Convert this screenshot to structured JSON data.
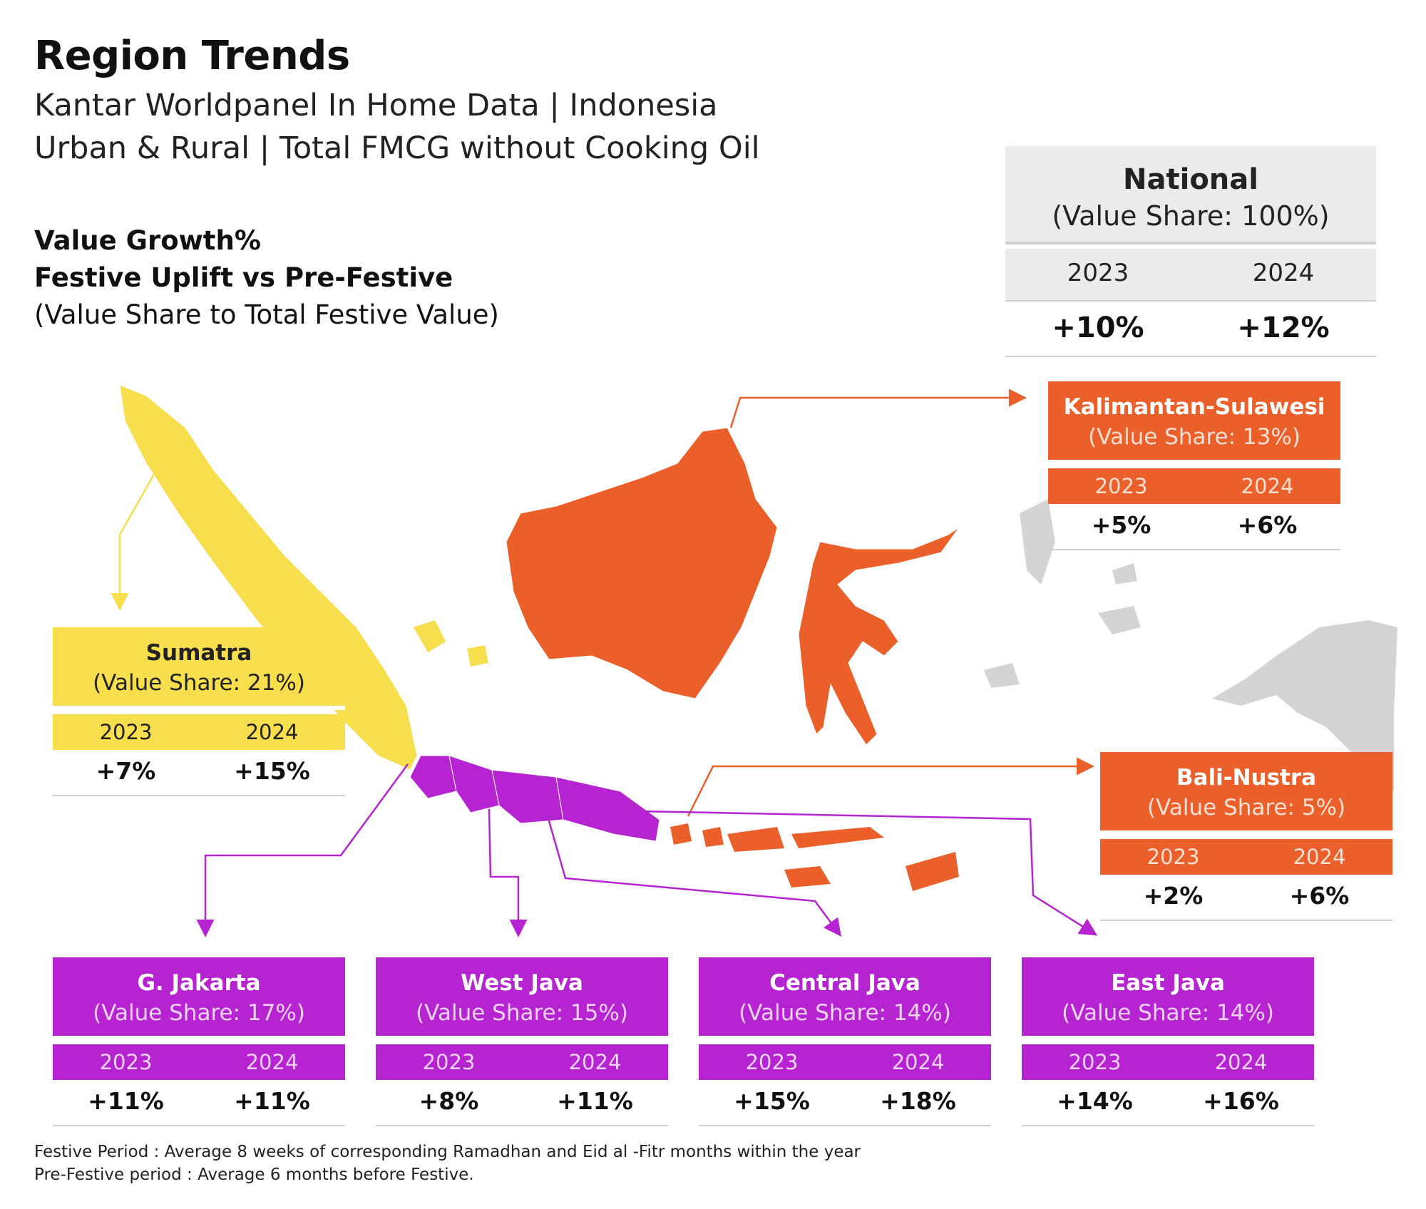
{
  "header": {
    "title": "Region Trends",
    "subtitle_line1": "Kantar Worldpanel In Home Data | Indonesia",
    "subtitle_line2": "Urban & Rural | Total FMCG without Cooking Oil"
  },
  "metric": {
    "line1": "Value Growth%",
    "line2": "Festive Uplift vs Pre-Festive",
    "line3": "(Value Share to Total Festive Value)"
  },
  "colors": {
    "sumatra": "#F7DE4D",
    "kalimantan_sulawesi": "#EB5F2A",
    "bali_nustra": "#EB5F2A",
    "java": "#B624D1",
    "other": "#d4d4d4"
  },
  "regions": {
    "national": {
      "name": "National",
      "share": "(Value Share: 100%)",
      "y1": "2023",
      "y2": "2024",
      "v1": "+10%",
      "v2": "+12%"
    },
    "sumatra": {
      "name": "Sumatra",
      "share": "(Value Share: 21%)",
      "y1": "2023",
      "y2": "2024",
      "v1": "+7%",
      "v2": "+15%"
    },
    "kalimantan_sulawesi": {
      "name": "Kalimantan-Sulawesi",
      "share": "(Value Share: 13%)",
      "y1": "2023",
      "y2": "2024",
      "v1": "+5%",
      "v2": "+6%"
    },
    "bali_nustra": {
      "name": "Bali-Nustra",
      "share": "(Value Share: 5%)",
      "y1": "2023",
      "y2": "2024",
      "v1": "+2%",
      "v2": "+6%"
    },
    "jakarta": {
      "name": "G. Jakarta",
      "share": "(Value Share: 17%)",
      "y1": "2023",
      "y2": "2024",
      "v1": "+11%",
      "v2": "+11%"
    },
    "west_java": {
      "name": "West Java",
      "share": "(Value Share: 15%)",
      "y1": "2023",
      "y2": "2024",
      "v1": "+8%",
      "v2": "+11%"
    },
    "central_java": {
      "name": "Central Java",
      "share": "(Value Share: 14%)",
      "y1": "2023",
      "y2": "2024",
      "v1": "+15%",
      "v2": "+18%"
    },
    "east_java": {
      "name": "East Java",
      "share": "(Value Share: 14%)",
      "y1": "2023",
      "y2": "2024",
      "v1": "+14%",
      "v2": "+16%"
    }
  },
  "footnote": {
    "line1": "Festive Period : Average 8 weeks of corresponding Ramadhan and Eid al -Fitr months within the year",
    "line2": "Pre-Festive period : Average 6 months before Festive."
  }
}
